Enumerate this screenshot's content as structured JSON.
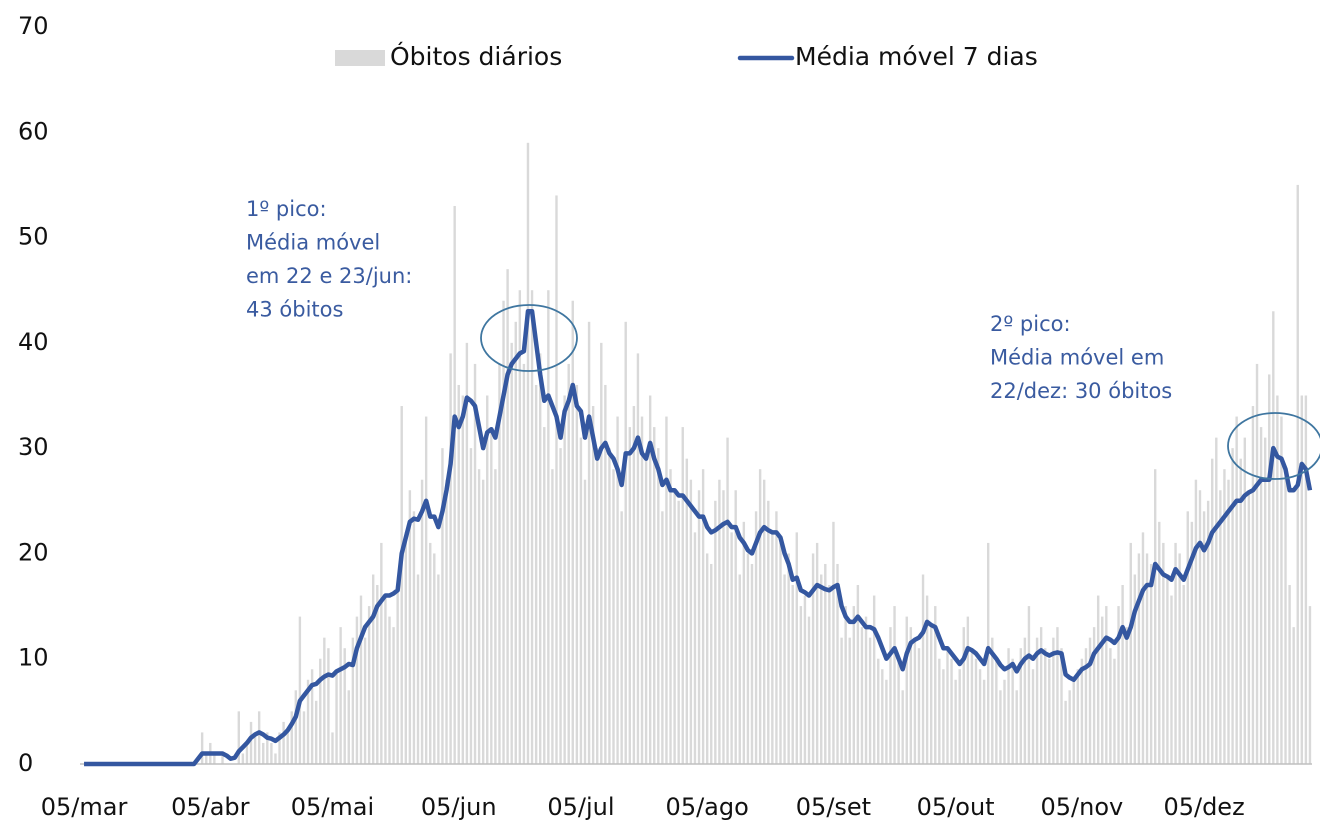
{
  "chart_data": {
    "type": "combo",
    "legend": "top",
    "grid": false,
    "categories": [
      "05/mar",
      null,
      null,
      null,
      null,
      null,
      null,
      null,
      null,
      null,
      null,
      null,
      null,
      null,
      null,
      null,
      null,
      null,
      null,
      null,
      null,
      null,
      null,
      null,
      null,
      null,
      null,
      null,
      null,
      null,
      null,
      "05/abr",
      null,
      null,
      null,
      null,
      null,
      null,
      null,
      null,
      null,
      null,
      null,
      null,
      null,
      null,
      null,
      null,
      null,
      null,
      null,
      null,
      null,
      null,
      null,
      null,
      null,
      null,
      null,
      null,
      null,
      "05/mai",
      null,
      null,
      null,
      null,
      null,
      null,
      null,
      null,
      null,
      null,
      null,
      null,
      null,
      null,
      null,
      null,
      null,
      null,
      null,
      null,
      null,
      null,
      null,
      null,
      null,
      null,
      null,
      null,
      null,
      null,
      "05/jun",
      null,
      null,
      null,
      null,
      null,
      null,
      null,
      null,
      null,
      null,
      null,
      null,
      null,
      null,
      null,
      null,
      null,
      null,
      null,
      null,
      null,
      null,
      null,
      null,
      null,
      null,
      null,
      null,
      null,
      "05/jul",
      null,
      null,
      null,
      null,
      null,
      null,
      null,
      null,
      null,
      null,
      null,
      null,
      null,
      null,
      null,
      null,
      null,
      null,
      null,
      null,
      null,
      null,
      null,
      null,
      null,
      null,
      null,
      null,
      null,
      null,
      "05/ago",
      null,
      null,
      null,
      null,
      null,
      null,
      null,
      null,
      null,
      null,
      null,
      null,
      null,
      null,
      null,
      null,
      null,
      null,
      null,
      null,
      null,
      null,
      null,
      null,
      null,
      null,
      null,
      null,
      null,
      null,
      "05/set",
      null,
      null,
      null,
      null,
      null,
      null,
      null,
      null,
      null,
      null,
      null,
      null,
      null,
      null,
      null,
      null,
      null,
      null,
      null,
      null,
      null,
      null,
      null,
      null,
      null,
      null,
      null,
      null,
      null,
      "05/out",
      null,
      null,
      null,
      null,
      null,
      null,
      null,
      null,
      null,
      null,
      null,
      null,
      null,
      null,
      null,
      null,
      null,
      null,
      null,
      null,
      null,
      null,
      null,
      null,
      null,
      null,
      null,
      null,
      null,
      null,
      "05/nov",
      null,
      null,
      null,
      null,
      null,
      null,
      null,
      null,
      null,
      null,
      null,
      null,
      null,
      null,
      null,
      null,
      null,
      null,
      null,
      null,
      null,
      null,
      null,
      null,
      null,
      null,
      null,
      null,
      null,
      "05/dez",
      null,
      null,
      null,
      null,
      null,
      null,
      null,
      null,
      null,
      null,
      null,
      null,
      null,
      null,
      null,
      null,
      null,
      null,
      null,
      null,
      null,
      null,
      null,
      null,
      null,
      null
    ],
    "series": [
      {
        "name": "Óbitos diários",
        "type": "bar",
        "color": "#d9d9d9",
        "values": [
          0,
          0,
          0,
          0,
          0,
          0,
          0,
          0,
          0,
          0,
          0,
          0,
          0,
          0,
          0,
          0,
          0,
          0,
          0,
          0,
          0,
          0,
          0,
          0,
          0,
          0,
          0,
          0,
          0,
          3,
          1,
          2,
          1,
          0,
          1,
          0,
          0,
          0,
          5,
          1,
          2,
          4,
          3,
          5,
          2,
          3,
          2,
          1,
          3,
          4,
          3,
          5,
          7,
          14,
          5,
          8,
          9,
          6,
          10,
          12,
          11,
          3,
          9,
          13,
          11,
          7,
          12,
          14,
          16,
          12,
          15,
          18,
          17,
          21,
          16,
          14,
          13,
          17,
          34,
          22,
          26,
          24,
          18,
          27,
          33,
          21,
          20,
          18,
          30,
          27,
          39,
          53,
          36,
          35,
          40,
          30,
          38,
          28,
          27,
          35,
          32,
          28,
          38,
          44,
          47,
          40,
          42,
          45,
          38,
          59,
          45,
          36,
          39,
          32,
          45,
          28,
          54,
          30,
          35,
          38,
          44,
          36,
          31,
          27,
          42,
          34,
          30,
          40,
          36,
          30,
          28,
          33,
          24,
          42,
          32,
          34,
          39,
          33,
          29,
          35,
          32,
          30,
          24,
          33,
          28,
          26,
          25,
          32,
          29,
          27,
          22,
          26,
          28,
          20,
          19,
          25,
          27,
          26,
          31,
          22,
          26,
          18,
          23,
          20,
          19,
          24,
          28,
          27,
          25,
          22,
          24,
          21,
          18,
          20,
          17,
          22,
          15,
          16,
          14,
          20,
          21,
          18,
          19,
          17,
          23,
          19,
          12,
          15,
          12,
          15,
          17,
          13,
          14,
          12,
          16,
          10,
          9,
          8,
          13,
          15,
          10,
          7,
          14,
          13,
          12,
          11,
          18,
          16,
          13,
          15,
          10,
          9,
          11,
          10,
          8,
          9,
          13,
          14,
          11,
          10,
          9,
          8,
          21,
          12,
          10,
          7,
          8,
          11,
          10,
          7,
          11,
          12,
          15,
          9,
          12,
          13,
          11,
          10,
          12,
          13,
          11,
          6,
          7,
          8,
          9,
          10,
          11,
          12,
          13,
          16,
          14,
          15,
          11,
          10,
          15,
          17,
          13,
          21,
          18,
          20,
          22,
          20,
          19,
          28,
          23,
          21,
          18,
          16,
          21,
          20,
          17,
          24,
          23,
          27,
          26,
          24,
          25,
          29,
          31,
          26,
          28,
          27,
          30,
          33,
          29,
          31,
          26,
          34,
          38,
          32,
          31,
          37,
          43,
          35,
          33,
          28,
          17,
          13,
          55,
          35,
          35,
          15
        ]
      },
      {
        "name": "Média móvel 7 dias",
        "type": "line",
        "color": "#3457a0",
        "values": [
          0,
          0,
          0,
          0,
          0,
          0,
          0,
          0,
          0,
          0,
          0,
          0,
          0,
          0,
          0,
          0,
          0,
          0,
          0,
          0,
          0,
          0,
          0,
          0,
          0,
          0,
          0,
          0,
          0.5,
          1,
          1,
          1,
          1,
          1,
          1,
          0.8,
          0.5,
          0.6,
          1.2,
          1.6,
          2,
          2.5,
          2.8,
          3,
          2.8,
          2.5,
          2.4,
          2.2,
          2.5,
          2.8,
          3.2,
          3.8,
          4.5,
          6,
          6.5,
          7,
          7.5,
          7.6,
          8,
          8.3,
          8.5,
          8.4,
          8.8,
          9,
          9.2,
          9.5,
          9.4,
          11,
          12,
          13,
          13.5,
          14,
          15,
          15.5,
          16,
          16,
          16.2,
          16.5,
          20,
          21.5,
          23,
          23.3,
          23.2,
          24,
          25,
          23.5,
          23.5,
          22.5,
          24,
          26,
          28.5,
          33,
          32,
          33,
          34.8,
          34.5,
          34,
          32,
          30,
          31.5,
          31.8,
          31,
          33,
          35,
          37,
          38,
          38.5,
          39,
          39.2,
          43,
          43,
          40,
          37,
          34.5,
          35,
          34,
          33,
          31,
          33.5,
          34.5,
          36,
          34,
          33.5,
          31,
          33,
          31,
          29,
          30,
          30.5,
          29.5,
          29,
          28,
          26.5,
          29.5,
          29.5,
          30,
          31,
          29.5,
          29,
          30.5,
          29,
          28,
          26.5,
          27,
          26,
          26,
          25.5,
          25.5,
          25,
          24.5,
          24,
          23.5,
          23.5,
          22.5,
          22,
          22.2,
          22.5,
          22.8,
          23,
          22.5,
          22.5,
          21.5,
          21,
          20.3,
          20,
          21,
          22,
          22.5,
          22.2,
          22,
          22,
          21.5,
          20,
          19,
          17.5,
          17.7,
          16.5,
          16.3,
          16,
          16.5,
          17,
          16.8,
          16.6,
          16.5,
          16.8,
          17,
          15,
          14,
          13.5,
          13.5,
          14,
          13.5,
          13,
          13,
          12.8,
          12,
          11,
          10,
          10.5,
          11,
          10,
          9,
          10.5,
          11.5,
          11.8,
          12,
          12.5,
          13.5,
          13.2,
          13,
          12,
          11,
          11,
          10.5,
          10,
          9.5,
          10,
          11,
          10.8,
          10.5,
          10,
          9.5,
          11,
          10.5,
          10,
          9.4,
          9,
          9.2,
          9.5,
          8.8,
          9.5,
          10,
          10.3,
          10,
          10.5,
          10.8,
          10.5,
          10.3,
          10.5,
          10.6,
          10.5,
          8.5,
          8.2,
          8,
          8.5,
          9,
          9.2,
          9.5,
          10.5,
          11,
          11.5,
          12,
          11.8,
          11.5,
          12,
          13,
          12,
          13,
          14.5,
          15.5,
          16.5,
          17,
          17,
          19,
          18.5,
          18,
          17.8,
          17.5,
          18.5,
          18,
          17.5,
          18.5,
          19.5,
          20.5,
          21,
          20.3,
          21,
          22,
          22.5,
          23,
          23.5,
          24,
          24.5,
          25,
          25,
          25.5,
          25.8,
          26,
          26.5,
          27,
          27,
          27,
          30,
          29.2,
          29,
          28,
          26,
          26,
          26.5,
          28.5,
          28,
          26
        ]
      }
    ],
    "ylim": [
      0,
      70
    ],
    "yticks": [
      0,
      10,
      20,
      30,
      40,
      50,
      60,
      70
    ],
    "annotations": [
      {
        "lines": [
          "1º pico:",
          "Média móvel",
          "em 22 e 23/jun:",
          "43 óbitos"
        ]
      },
      {
        "lines": [
          "2º pico:",
          "Média móvel em",
          "22/dez: 30 óbitos"
        ]
      }
    ]
  }
}
